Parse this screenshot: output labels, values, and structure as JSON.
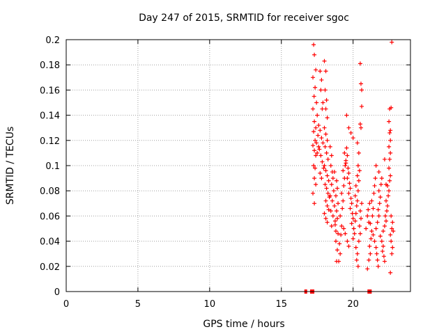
{
  "chart_data": {
    "type": "scatter",
    "title": "Day 247 of 2015, SRMTID for receiver sgoc",
    "xlabel": "GPS time / hours",
    "ylabel": "SRMTID / TECUs",
    "xlim": [
      0,
      24
    ],
    "ylim": [
      0,
      0.2
    ],
    "xticks": [
      0,
      5,
      10,
      15,
      20
    ],
    "xtick_labels": [
      "0",
      "5",
      "10",
      "15",
      "20"
    ],
    "yticks": [
      0,
      0.02,
      0.04,
      0.06,
      0.08,
      0.1,
      0.12,
      0.14,
      0.16,
      0.18,
      0.2
    ],
    "ytick_labels": [
      "0",
      "0.02",
      "0.04",
      "0.06",
      "0.08",
      "0.1",
      "0.12",
      "0.14",
      "0.16",
      "0.18",
      "0.2"
    ],
    "grid": true,
    "marker": "+",
    "color": "#ff0000",
    "series": [
      {
        "name": "SRMTID",
        "points": [
          [
            17.25,
            0.196
          ],
          [
            17.3,
            0.188
          ],
          [
            17.4,
            0.176
          ],
          [
            17.2,
            0.17
          ],
          [
            17.35,
            0.162
          ],
          [
            17.28,
            0.155
          ],
          [
            17.45,
            0.15
          ],
          [
            17.2,
            0.145
          ],
          [
            17.5,
            0.14
          ],
          [
            17.3,
            0.135
          ],
          [
            17.4,
            0.13
          ],
          [
            17.25,
            0.127
          ],
          [
            17.55,
            0.124
          ],
          [
            17.35,
            0.12
          ],
          [
            17.45,
            0.118
          ],
          [
            17.2,
            0.116
          ],
          [
            17.6,
            0.115
          ],
          [
            17.3,
            0.112
          ],
          [
            17.5,
            0.11
          ],
          [
            17.4,
            0.108
          ],
          [
            17.25,
            0.1
          ],
          [
            17.35,
            0.098
          ],
          [
            17.3,
            0.09
          ],
          [
            17.4,
            0.085
          ],
          [
            17.2,
            0.078
          ],
          [
            17.3,
            0.07
          ],
          [
            17.7,
            0.175
          ],
          [
            17.8,
            0.168
          ],
          [
            17.9,
            0.15
          ],
          [
            17.75,
            0.16
          ],
          [
            17.85,
            0.145
          ],
          [
            17.6,
            0.132
          ],
          [
            17.7,
            0.128
          ],
          [
            17.8,
            0.122
          ],
          [
            17.9,
            0.118
          ],
          [
            17.65,
            0.113
          ],
          [
            17.75,
            0.108
          ],
          [
            17.85,
            0.103
          ],
          [
            17.95,
            0.098
          ],
          [
            17.7,
            0.094
          ],
          [
            17.8,
            0.09
          ],
          [
            18.0,
            0.183
          ],
          [
            18.1,
            0.175
          ],
          [
            18.05,
            0.16
          ],
          [
            18.15,
            0.152
          ],
          [
            18.1,
            0.145
          ],
          [
            18.2,
            0.138
          ],
          [
            18.0,
            0.13
          ],
          [
            18.1,
            0.125
          ],
          [
            18.2,
            0.12
          ],
          [
            18.05,
            0.115
          ],
          [
            18.15,
            0.11
          ],
          [
            18.25,
            0.105
          ],
          [
            18.0,
            0.1
          ],
          [
            18.1,
            0.096
          ],
          [
            18.2,
            0.092
          ],
          [
            18.3,
            0.088
          ],
          [
            18.05,
            0.085
          ],
          [
            18.15,
            0.082
          ],
          [
            18.25,
            0.078
          ],
          [
            18.35,
            0.075
          ],
          [
            18.1,
            0.072
          ],
          [
            18.2,
            0.068
          ],
          [
            18.3,
            0.065
          ],
          [
            18.0,
            0.062
          ],
          [
            18.1,
            0.058
          ],
          [
            18.2,
            0.055
          ],
          [
            18.4,
            0.115
          ],
          [
            18.5,
            0.108
          ],
          [
            18.45,
            0.1
          ],
          [
            18.55,
            0.095
          ],
          [
            18.6,
            0.09
          ],
          [
            18.5,
            0.085
          ],
          [
            18.65,
            0.08
          ],
          [
            18.4,
            0.076
          ],
          [
            18.55,
            0.072
          ],
          [
            18.7,
            0.068
          ],
          [
            18.45,
            0.064
          ],
          [
            18.6,
            0.06
          ],
          [
            18.75,
            0.056
          ],
          [
            18.5,
            0.052
          ],
          [
            18.8,
            0.048
          ],
          [
            18.7,
            0.095
          ],
          [
            18.85,
            0.088
          ],
          [
            18.9,
            0.082
          ],
          [
            18.8,
            0.076
          ],
          [
            18.95,
            0.07
          ],
          [
            18.85,
            0.064
          ],
          [
            18.9,
            0.058
          ],
          [
            18.75,
            0.053
          ],
          [
            18.95,
            0.046
          ],
          [
            18.8,
            0.04
          ],
          [
            18.9,
            0.033
          ],
          [
            18.85,
            0.024
          ],
          [
            19.0,
            0.024
          ],
          [
            19.1,
            0.03
          ],
          [
            19.05,
            0.038
          ],
          [
            19.15,
            0.045
          ],
          [
            19.2,
            0.052
          ],
          [
            19.1,
            0.06
          ],
          [
            19.25,
            0.066
          ],
          [
            19.3,
            0.072
          ],
          [
            19.2,
            0.078
          ],
          [
            19.35,
            0.084
          ],
          [
            19.4,
            0.09
          ],
          [
            19.3,
            0.096
          ],
          [
            19.45,
            0.1
          ],
          [
            19.5,
            0.104
          ],
          [
            19.4,
            0.11
          ],
          [
            19.55,
            0.114
          ],
          [
            19.6,
            0.108
          ],
          [
            19.5,
            0.102
          ],
          [
            19.65,
            0.098
          ],
          [
            19.7,
            0.094
          ],
          [
            19.6,
            0.09
          ],
          [
            19.75,
            0.086
          ],
          [
            19.8,
            0.082
          ],
          [
            19.7,
            0.078
          ],
          [
            19.85,
            0.074
          ],
          [
            19.9,
            0.07
          ],
          [
            19.8,
            0.066
          ],
          [
            19.95,
            0.062
          ],
          [
            20.0,
            0.058
          ],
          [
            19.9,
            0.054
          ],
          [
            20.05,
            0.05
          ],
          [
            20.1,
            0.046
          ],
          [
            20.0,
            0.042
          ],
          [
            19.55,
            0.14
          ],
          [
            19.7,
            0.13
          ],
          [
            19.85,
            0.126
          ],
          [
            20.0,
            0.122
          ],
          [
            19.6,
            0.04
          ],
          [
            19.7,
            0.036
          ],
          [
            19.45,
            0.046
          ],
          [
            19.35,
            0.05
          ],
          [
            20.15,
            0.056
          ],
          [
            20.2,
            0.062
          ],
          [
            20.25,
            0.068
          ],
          [
            20.3,
            0.072
          ],
          [
            20.15,
            0.076
          ],
          [
            20.35,
            0.08
          ],
          [
            20.2,
            0.084
          ],
          [
            20.4,
            0.088
          ],
          [
            20.3,
            0.092
          ],
          [
            20.45,
            0.096
          ],
          [
            20.35,
            0.1
          ],
          [
            20.2,
            0.035
          ],
          [
            20.3,
            0.03
          ],
          [
            20.25,
            0.025
          ],
          [
            20.35,
            0.02
          ],
          [
            20.4,
            0.04
          ],
          [
            20.5,
            0.046
          ],
          [
            20.45,
            0.052
          ],
          [
            20.55,
            0.058
          ],
          [
            20.5,
            0.064
          ],
          [
            20.6,
            0.07
          ],
          [
            20.5,
            0.181
          ],
          [
            20.55,
            0.165
          ],
          [
            20.6,
            0.16
          ],
          [
            20.6,
            0.147
          ],
          [
            20.5,
            0.133
          ],
          [
            20.55,
            0.13
          ],
          [
            20.3,
            0.118
          ],
          [
            20.4,
            0.11
          ],
          [
            21.0,
            0.018
          ],
          [
            21.1,
            0.025
          ],
          [
            21.2,
            0.03
          ],
          [
            21.15,
            0.036
          ],
          [
            21.25,
            0.042
          ],
          [
            21.3,
            0.048
          ],
          [
            21.2,
            0.054
          ],
          [
            21.35,
            0.06
          ],
          [
            21.4,
            0.066
          ],
          [
            21.3,
            0.072
          ],
          [
            21.45,
            0.078
          ],
          [
            21.5,
            0.084
          ],
          [
            21.55,
            0.09
          ],
          [
            21.4,
            0.045
          ],
          [
            21.5,
            0.04
          ],
          [
            21.6,
            0.035
          ],
          [
            21.65,
            0.03
          ],
          [
            21.7,
            0.025
          ],
          [
            21.75,
            0.02
          ],
          [
            21.6,
            0.05
          ],
          [
            21.7,
            0.055
          ],
          [
            21.8,
            0.06
          ],
          [
            21.75,
            0.065
          ],
          [
            21.85,
            0.07
          ],
          [
            21.9,
            0.075
          ],
          [
            21.8,
            0.08
          ],
          [
            21.95,
            0.085
          ],
          [
            22.0,
            0.09
          ],
          [
            21.9,
            0.044
          ],
          [
            22.0,
            0.04
          ],
          [
            22.1,
            0.036
          ],
          [
            22.05,
            0.032
          ],
          [
            22.15,
            0.028
          ],
          [
            22.2,
            0.024
          ],
          [
            22.1,
            0.048
          ],
          [
            22.2,
            0.052
          ],
          [
            22.3,
            0.056
          ],
          [
            22.25,
            0.06
          ],
          [
            22.35,
            0.064
          ],
          [
            22.4,
            0.068
          ],
          [
            22.3,
            0.072
          ],
          [
            22.45,
            0.076
          ],
          [
            22.5,
            0.08
          ],
          [
            22.4,
            0.084
          ],
          [
            22.55,
            0.088
          ],
          [
            22.6,
            0.092
          ],
          [
            22.5,
            0.098
          ],
          [
            22.55,
            0.105
          ],
          [
            22.6,
            0.11
          ],
          [
            22.5,
            0.115
          ],
          [
            22.6,
            0.12
          ],
          [
            22.55,
            0.126
          ],
          [
            22.6,
            0.128
          ],
          [
            22.5,
            0.135
          ],
          [
            22.55,
            0.145
          ],
          [
            22.65,
            0.146
          ],
          [
            22.7,
            0.198
          ],
          [
            22.6,
            0.045
          ],
          [
            22.7,
            0.05
          ],
          [
            22.65,
            0.04
          ],
          [
            22.75,
            0.035
          ],
          [
            22.7,
            0.03
          ],
          [
            22.6,
            0.015
          ],
          [
            22.75,
            0.055
          ],
          [
            22.8,
            0.048
          ],
          [
            22.65,
            0.06
          ],
          [
            21.6,
            0.1
          ],
          [
            21.8,
            0.095
          ],
          [
            22.2,
            0.105
          ],
          [
            22.3,
            0.085
          ],
          [
            21.1,
            0.055
          ],
          [
            21.05,
            0.065
          ],
          [
            21.0,
            0.06
          ],
          [
            21.15,
            0.07
          ],
          [
            20.9,
            0.05
          ]
        ]
      }
    ],
    "zero_markers_x": [
      16.7,
      17.1,
      17.2,
      21.1,
      21.2
    ]
  }
}
